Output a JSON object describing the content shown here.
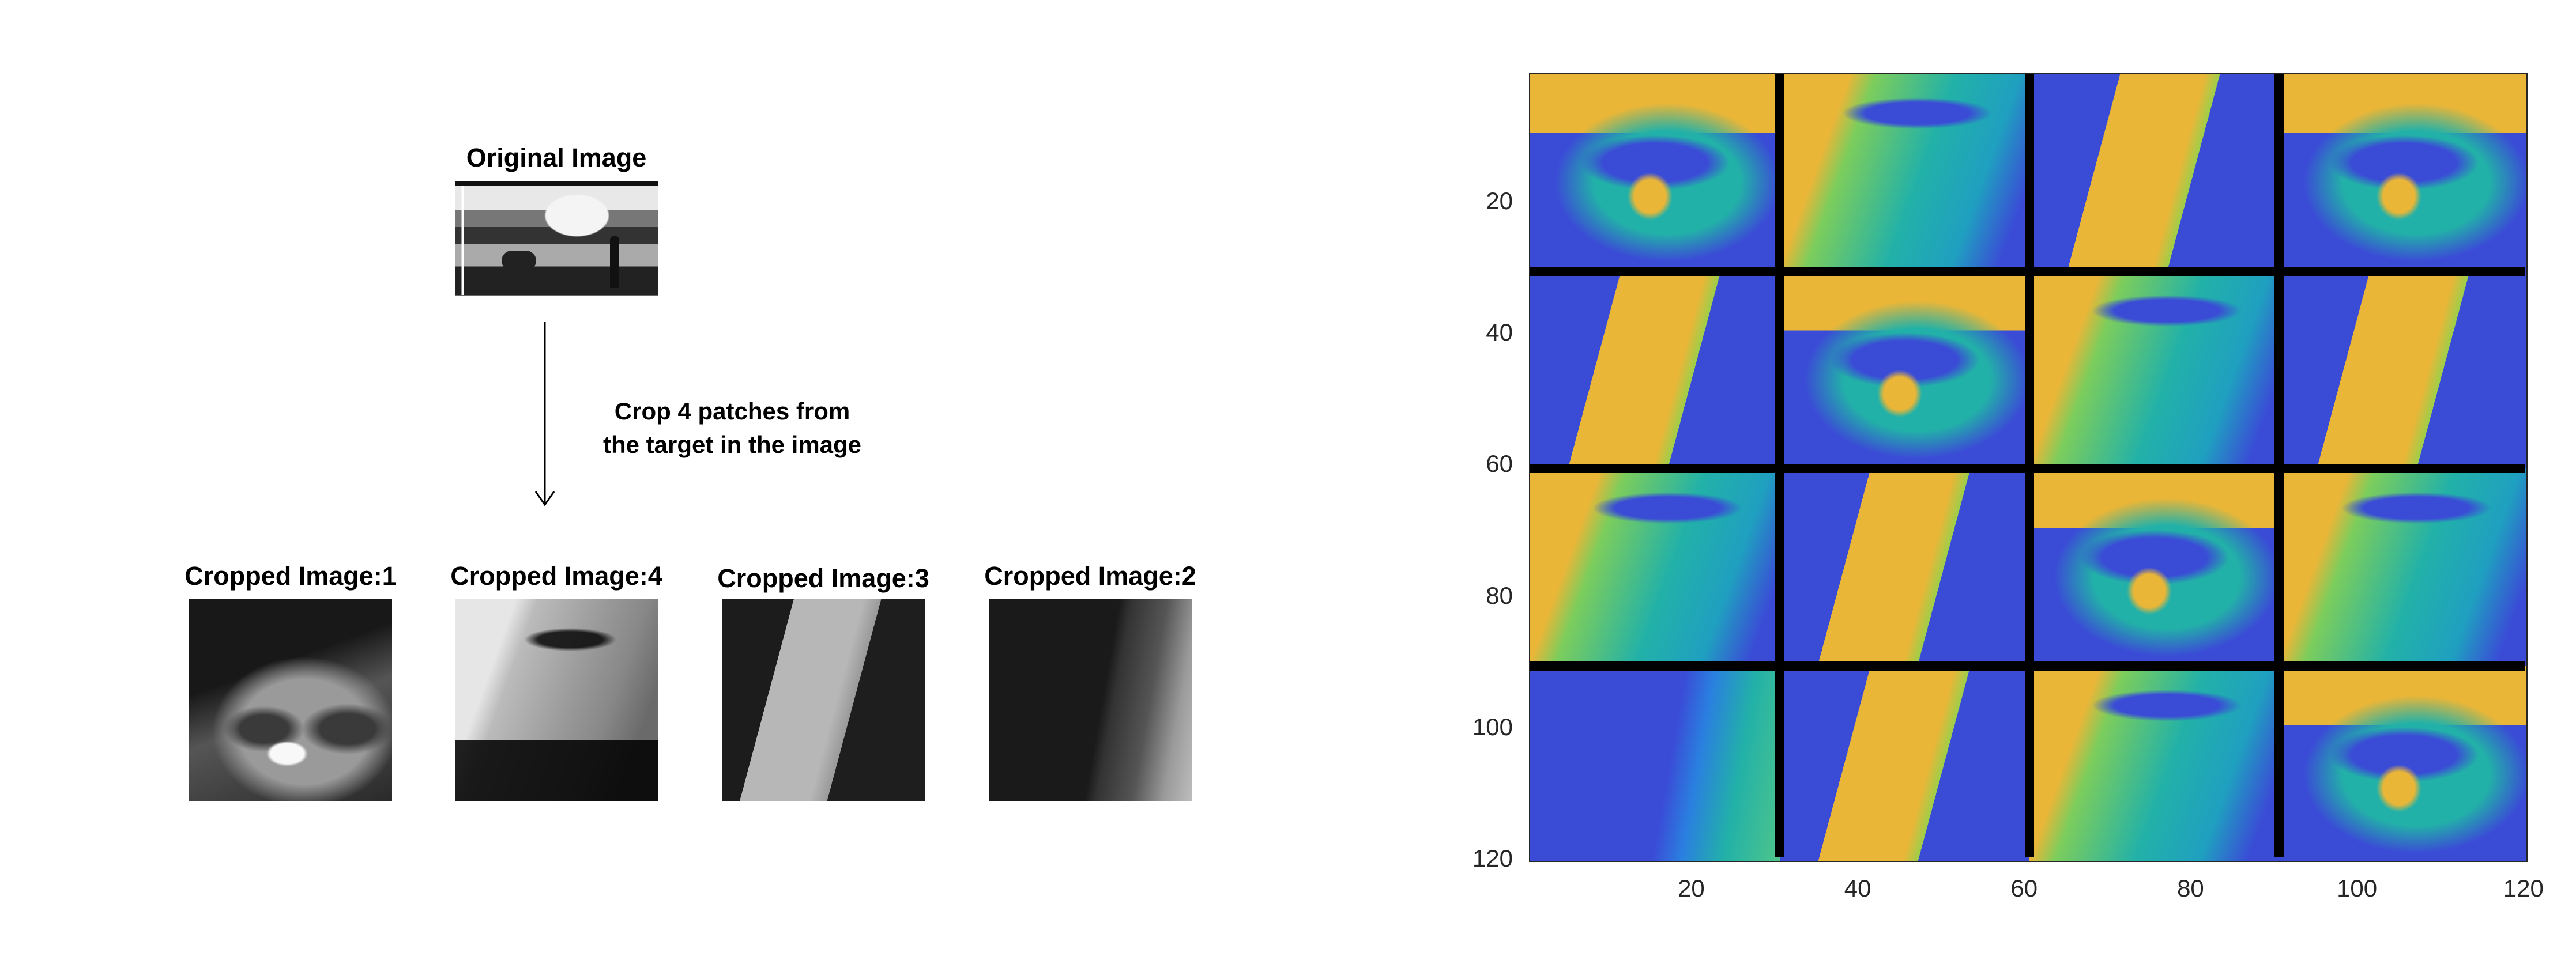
{
  "original": {
    "title": "Original Image"
  },
  "arrow": {
    "caption_line1": "Crop 4 patches from",
    "caption_line2": "the target in the image"
  },
  "crops": [
    {
      "title": "Cropped Image:1"
    },
    {
      "title": "Cropped Image:4"
    },
    {
      "title": "Cropped Image:3"
    },
    {
      "title": "Cropped Image:2"
    }
  ],
  "chart_data": {
    "type": "heatmap",
    "title": "",
    "xlabel": "",
    "ylabel": "",
    "xlim": [
      0.5,
      120.5
    ],
    "ylim": [
      0.5,
      120.5
    ],
    "y_reversed": true,
    "xticks": [
      20,
      40,
      60,
      80,
      100,
      120
    ],
    "yticks": [
      20,
      40,
      60,
      80,
      100,
      120
    ],
    "colormap": "parula",
    "grid_lines_at": [
      30.5,
      60.5,
      90.5
    ],
    "grid_line_color": "#000000",
    "patch_layout": [
      [
        1,
        4,
        3,
        1
      ],
      [
        3,
        1,
        4,
        3
      ],
      [
        4,
        3,
        1,
        4
      ],
      [
        2,
        3,
        4,
        1
      ]
    ]
  },
  "colors": {
    "parula_low": "#3a4cd6",
    "parula_mid": "#22b1a8",
    "parula_high": "#e9b638"
  }
}
